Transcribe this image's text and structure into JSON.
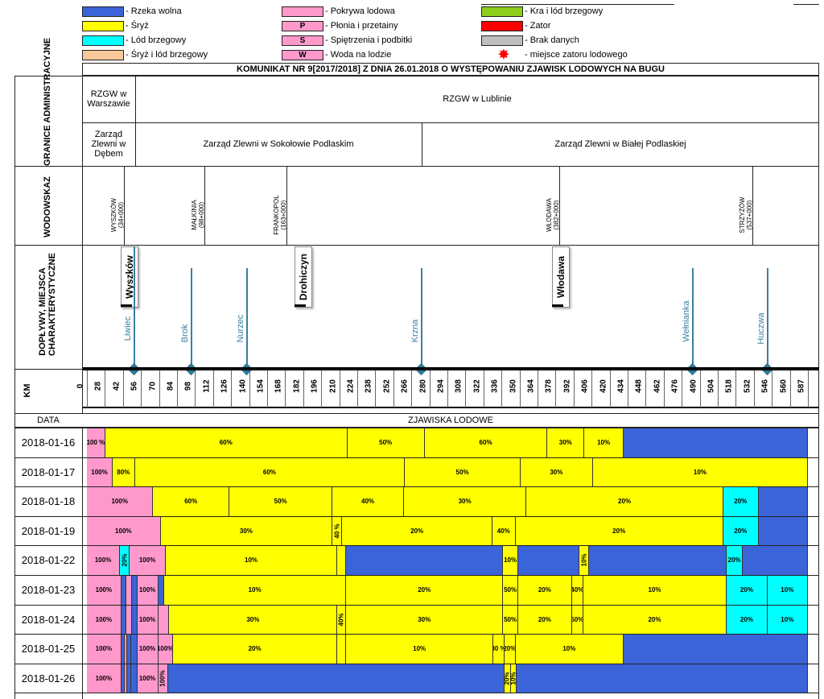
{
  "legend": [
    {
      "color": "#3b64d8",
      "mark": "",
      "label": "- Rzeka wolna"
    },
    {
      "color": "#ffff00",
      "mark": "",
      "label": "- Śryż"
    },
    {
      "color": "#00ffff",
      "mark": "",
      "label": "- Lód brzegowy"
    },
    {
      "color": "#f8c89a",
      "mark": "",
      "label": "- Śryż i lód brzegowy"
    },
    {
      "color": "#ff99cc",
      "mark": "",
      "label": "- Pokrywa lodowa"
    },
    {
      "color": "#ff99cc",
      "mark": "P",
      "label": "- Płonia i przetainy"
    },
    {
      "color": "#ff99cc",
      "mark": "S",
      "label": "- Spiętrzenia i podbitki"
    },
    {
      "color": "#ff99cc",
      "mark": "W",
      "label": "- Woda na lodzie"
    },
    {
      "color": "#8ecf1e",
      "mark": "",
      "label": "- Kra i lód brzegowy"
    },
    {
      "color": "#ff0000",
      "mark": "",
      "label": "- Zator"
    },
    {
      "color": "#bfbfbf",
      "mark": "",
      "label": "- Brak danych"
    },
    {
      "color": "star",
      "mark": "",
      "label": "- miejsce zatoru lodowego"
    }
  ],
  "title": "KOMUNIKAT NR 9[2017/2018] Z DNIA 26.01.2018 O WYSTĘPOWANIU ZJAWISK LODOWYCH NA BUGU",
  "rows": {
    "granice": "GRANICE ADMINISTRACYJNE",
    "wodowskaz": "WODOWSKAZ",
    "doplywy": "DOPŁYWY, MIEJSCA CHARAKTERYSTYCZNE",
    "km": "KM",
    "data": "DATA",
    "zjawiska": "ZJAWISKA LODOWE"
  },
  "admin": {
    "rzgw_warszawa": "RZGW w Warszawie",
    "rzgw_lublin": "RZGW w Lublinie",
    "zz_debe": "Zarząd Zlewni w Dębem",
    "zz_sokolow": "Zarząd Zlewni w Sokołowie Podlaskim",
    "zz_biala": "Zarząd Zlewni w Białej Podlaskiej"
  },
  "gauges": [
    {
      "name": "WYSZKÓW",
      "km_label": "(34+000)",
      "km": 34
    },
    {
      "name": "MAŁKINIA",
      "km_label": "(98+000)",
      "km": 98
    },
    {
      "name": "FRANKOPOL",
      "km_label": "(163+000)",
      "km": 163
    },
    {
      "name": "WŁODAWA",
      "km_label": "(382+000)",
      "km": 382
    },
    {
      "name": "STRZYŻÓW",
      "km_label": "(537+000)",
      "km": 537
    }
  ],
  "places": [
    {
      "name": "Wyszków",
      "km": 34
    },
    {
      "name": "Drohiczyn",
      "km": 166
    },
    {
      "name": "Włodawa",
      "km": 372
    }
  ],
  "tributaries": [
    {
      "name": "Liwiec",
      "km": 41
    },
    {
      "name": "Brok",
      "km": 84
    },
    {
      "name": "Nurzec",
      "km": 127
    },
    {
      "name": "Krzna",
      "km": 262
    },
    {
      "name": "Wełnianka",
      "km": 472
    },
    {
      "name": "Huczwa",
      "km": 529
    }
  ],
  "chart_data": {
    "type": "table",
    "title": "KOMUNIKAT NR 9[2017/2018] Z DNIA 26.01.2018 O WYSTĘPOWANIU ZJAWISK LODOWYCH NA BUGU",
    "km_ticks": [
      0,
      28,
      42,
      56,
      70,
      84,
      98,
      112,
      126,
      140,
      154,
      168,
      182,
      196,
      210,
      224,
      238,
      252,
      266,
      280,
      294,
      308,
      322,
      336,
      350,
      364,
      378,
      392,
      406,
      420,
      434,
      448,
      462,
      476,
      490,
      504,
      518,
      532,
      546,
      560,
      587
    ],
    "km_range": [
      0,
      587
    ],
    "days": [
      {
        "date": "2018-01-16",
        "segments": [
          {
            "from": 0,
            "to": 15,
            "phenomenon": "Pokrywa lodowa",
            "label": "100 %"
          },
          {
            "from": 15,
            "to": 212,
            "phenomenon": "Śryż",
            "label": "60%"
          },
          {
            "from": 212,
            "to": 275,
            "phenomenon": "Śryż",
            "label": "50%"
          },
          {
            "from": 275,
            "to": 375,
            "phenomenon": "Śryż",
            "label": "60%"
          },
          {
            "from": 375,
            "to": 405,
            "phenomenon": "Śryż",
            "label": "30%"
          },
          {
            "from": 405,
            "to": 437,
            "phenomenon": "Śryż",
            "label": "10%"
          },
          {
            "from": 437,
            "to": 587,
            "phenomenon": "Rzeka wolna",
            "label": ""
          }
        ]
      },
      {
        "date": "2018-01-17",
        "segments": [
          {
            "from": 0,
            "to": 21,
            "phenomenon": "Pokrywa lodowa",
            "label": "100%"
          },
          {
            "from": 21,
            "to": 39,
            "phenomenon": "Śryż",
            "label": "80%"
          },
          {
            "from": 39,
            "to": 259,
            "phenomenon": "Śryż",
            "label": "60%"
          },
          {
            "from": 259,
            "to": 353,
            "phenomenon": "Śryż",
            "label": "50%"
          },
          {
            "from": 353,
            "to": 412,
            "phenomenon": "Śryż",
            "label": "30%"
          },
          {
            "from": 412,
            "to": 587,
            "phenomenon": "Śryż",
            "label": "10%"
          }
        ]
      },
      {
        "date": "2018-01-18",
        "segments": [
          {
            "from": 0,
            "to": 54,
            "phenomenon": "Pokrywa lodowa",
            "label": "100%"
          },
          {
            "from": 54,
            "to": 116,
            "phenomenon": "Śryż",
            "label": "60%"
          },
          {
            "from": 116,
            "to": 200,
            "phenomenon": "Śryż",
            "label": "50%"
          },
          {
            "from": 200,
            "to": 258,
            "phenomenon": "Śryż",
            "label": "40%"
          },
          {
            "from": 258,
            "to": 358,
            "phenomenon": "Śryż",
            "label": "30%"
          },
          {
            "from": 358,
            "to": 518,
            "phenomenon": "Śryż",
            "label": "20%"
          },
          {
            "from": 518,
            "to": 547,
            "phenomenon": "Lód brzegowy",
            "label": "20%"
          },
          {
            "from": 547,
            "to": 587,
            "phenomenon": "Rzeka wolna",
            "label": ""
          }
        ]
      },
      {
        "date": "2018-01-19",
        "segments": [
          {
            "from": 0,
            "to": 60,
            "phenomenon": "Pokrywa lodowa",
            "label": "100%"
          },
          {
            "from": 60,
            "to": 200,
            "phenomenon": "Śryż",
            "label": "30%"
          },
          {
            "from": 200,
            "to": 208,
            "phenomenon": "Śryż",
            "label": "40 %"
          },
          {
            "from": 208,
            "to": 330,
            "phenomenon": "Śryż",
            "label": "20%"
          },
          {
            "from": 330,
            "to": 349,
            "phenomenon": "Śryż",
            "label": "40%"
          },
          {
            "from": 349,
            "to": 518,
            "phenomenon": "Śryż",
            "label": "20%"
          },
          {
            "from": 518,
            "to": 547,
            "phenomenon": "Lód brzegowy",
            "label": "20%"
          },
          {
            "from": 547,
            "to": 587,
            "phenomenon": "Rzeka wolna",
            "label": ""
          }
        ]
      },
      {
        "date": "2018-01-22",
        "segments": [
          {
            "from": 0,
            "to": 27,
            "phenomenon": "Pokrywa lodowa",
            "label": "100%"
          },
          {
            "from": 27,
            "to": 35,
            "phenomenon": "Lód brzegowy",
            "label": "20%"
          },
          {
            "from": 35,
            "to": 64,
            "phenomenon": "Pokrywa lodowa",
            "label": "100%"
          },
          {
            "from": 64,
            "to": 204,
            "phenomenon": "Śryż",
            "label": "10%"
          },
          {
            "from": 204,
            "to": 211,
            "phenomenon": "Śryż",
            "label": ""
          },
          {
            "from": 211,
            "to": 339,
            "phenomenon": "Rzeka wolna",
            "label": ""
          },
          {
            "from": 339,
            "to": 351,
            "phenomenon": "Śryż",
            "label": "10%"
          },
          {
            "from": 351,
            "to": 401,
            "phenomenon": "Rzeka wolna",
            "label": ""
          },
          {
            "from": 401,
            "to": 409,
            "phenomenon": "Śryż",
            "label": "10%"
          },
          {
            "from": 409,
            "to": 521,
            "phenomenon": "Rzeka wolna",
            "label": ""
          },
          {
            "from": 521,
            "to": 534,
            "phenomenon": "Lód brzegowy",
            "label": "20%"
          },
          {
            "from": 534,
            "to": 587,
            "phenomenon": "Rzeka wolna",
            "label": ""
          }
        ]
      },
      {
        "date": "2018-01-23",
        "segments": [
          {
            "from": 0,
            "to": 28,
            "phenomenon": "Pokrywa lodowa",
            "label": "100%"
          },
          {
            "from": 28,
            "to": 32,
            "phenomenon": "Rzeka wolna",
            "label": ""
          },
          {
            "from": 32,
            "to": 37,
            "phenomenon": "Pokrywa lodowa",
            "label": ""
          },
          {
            "from": 37,
            "to": 41,
            "phenomenon": "Rzeka wolna",
            "label": ""
          },
          {
            "from": 41,
            "to": 58,
            "phenomenon": "Pokrywa lodowa",
            "label": "100%"
          },
          {
            "from": 58,
            "to": 63,
            "phenomenon": "Rzeka wolna",
            "label": ""
          },
          {
            "from": 63,
            "to": 211,
            "phenomenon": "Śryż",
            "label": "10%"
          },
          {
            "from": 211,
            "to": 339,
            "phenomenon": "Śryż",
            "label": "20%"
          },
          {
            "from": 339,
            "to": 351,
            "phenomenon": "Śryż",
            "label": "50%"
          },
          {
            "from": 351,
            "to": 395,
            "phenomenon": "Śryż",
            "label": "20%"
          },
          {
            "from": 395,
            "to": 404,
            "phenomenon": "Śryż",
            "label": "40%"
          },
          {
            "from": 404,
            "to": 521,
            "phenomenon": "Śryż",
            "label": "10%"
          },
          {
            "from": 521,
            "to": 554,
            "phenomenon": "Lód brzegowy",
            "label": "20%"
          },
          {
            "from": 554,
            "to": 587,
            "phenomenon": "Lód brzegowy",
            "label": "10%"
          }
        ]
      },
      {
        "date": "2018-01-24",
        "segments": [
          {
            "from": 0,
            "to": 28,
            "phenomenon": "Pokrywa lodowa",
            "label": "100%"
          },
          {
            "from": 28,
            "to": 32,
            "phenomenon": "Rzeka wolna",
            "label": ""
          },
          {
            "from": 32,
            "to": 37,
            "phenomenon": "Pokrywa lodowa",
            "label": ""
          },
          {
            "from": 37,
            "to": 41,
            "phenomenon": "Rzeka wolna",
            "label": ""
          },
          {
            "from": 41,
            "to": 58,
            "phenomenon": "Pokrywa lodowa",
            "label": "100%"
          },
          {
            "from": 58,
            "to": 67,
            "phenomenon": "Pokrywa lodowa",
            "label": ""
          },
          {
            "from": 67,
            "to": 204,
            "phenomenon": "Śryż",
            "label": "30%"
          },
          {
            "from": 204,
            "to": 211,
            "phenomenon": "Śryż",
            "label": "40%"
          },
          {
            "from": 211,
            "to": 339,
            "phenomenon": "Śryż",
            "label": "30%"
          },
          {
            "from": 339,
            "to": 351,
            "phenomenon": "Śryż",
            "label": "50%"
          },
          {
            "from": 351,
            "to": 395,
            "phenomenon": "Śryż",
            "label": "20%"
          },
          {
            "from": 395,
            "to": 404,
            "phenomenon": "Śryż",
            "label": "50%"
          },
          {
            "from": 404,
            "to": 521,
            "phenomenon": "Śryż",
            "label": "20%"
          },
          {
            "from": 521,
            "to": 554,
            "phenomenon": "Lód brzegowy",
            "label": "20%"
          },
          {
            "from": 554,
            "to": 587,
            "phenomenon": "Lód brzegowy",
            "label": "10%"
          }
        ]
      },
      {
        "date": "2018-01-25",
        "segments": [
          {
            "from": 0,
            "to": 28,
            "phenomenon": "Pokrywa lodowa",
            "label": "100%"
          },
          {
            "from": 28,
            "to": 31,
            "phenomenon": "Rzeka wolna",
            "label": ""
          },
          {
            "from": 31,
            "to": 33,
            "phenomenon": "Pokrywa lodowa",
            "label": ""
          },
          {
            "from": 33,
            "to": 36,
            "phenomenon": "Rzeka wolna",
            "label": ""
          },
          {
            "from": 36,
            "to": 41,
            "phenomenon": "Rzeka wolna",
            "label": ""
          },
          {
            "from": 41,
            "to": 58,
            "phenomenon": "Pokrywa lodowa",
            "label": "100%"
          },
          {
            "from": 58,
            "to": 70,
            "phenomenon": "Pokrywa lodowa",
            "label": "100%"
          },
          {
            "from": 70,
            "to": 204,
            "phenomenon": "Śryż",
            "label": "20%"
          },
          {
            "from": 204,
            "to": 211,
            "phenomenon": "Śryż",
            "label": ""
          },
          {
            "from": 211,
            "to": 331,
            "phenomenon": "Śryż",
            "label": "10%"
          },
          {
            "from": 331,
            "to": 340,
            "phenomenon": "Śryż",
            "label": "30 %"
          },
          {
            "from": 340,
            "to": 349,
            "phenomenon": "Śryż",
            "label": "20%"
          },
          {
            "from": 349,
            "to": 437,
            "phenomenon": "Śryż",
            "label": "10%"
          },
          {
            "from": 437,
            "to": 587,
            "phenomenon": "Rzeka wolna",
            "label": ""
          }
        ]
      },
      {
        "date": "2018-01-26",
        "segments": [
          {
            "from": 0,
            "to": 28,
            "phenomenon": "Pokrywa lodowa",
            "label": "100%"
          },
          {
            "from": 28,
            "to": 31,
            "phenomenon": "Rzeka wolna",
            "label": ""
          },
          {
            "from": 31,
            "to": 33,
            "phenomenon": "Pokrywa lodowa",
            "label": ""
          },
          {
            "from": 33,
            "to": 36,
            "phenomenon": "Rzeka wolna",
            "label": ""
          },
          {
            "from": 36,
            "to": 41,
            "phenomenon": "Rzeka wolna",
            "label": ""
          },
          {
            "from": 41,
            "to": 58,
            "phenomenon": "Pokrywa lodowa",
            "label": "100%"
          },
          {
            "from": 58,
            "to": 66,
            "phenomenon": "Pokrywa lodowa",
            "label": "100%"
          },
          {
            "from": 66,
            "to": 340,
            "phenomenon": "Rzeka wolna",
            "label": ""
          },
          {
            "from": 340,
            "to": 345,
            "phenomenon": "Śryż",
            "label": "20%"
          },
          {
            "from": 345,
            "to": 350,
            "phenomenon": "Śryż",
            "label": "10%"
          },
          {
            "from": 350,
            "to": 587,
            "phenomenon": "Rzeka wolna",
            "label": ""
          }
        ]
      }
    ]
  },
  "colors": {
    "Rzeka wolna": "#3b64d8",
    "Śryż": "#ffff00",
    "Lód brzegowy": "#00ffff",
    "Śryż i lód brzegowy": "#f8c89a",
    "Pokrywa lodowa": "#ff99cc",
    "Kra i lód brzegowy": "#8ecf1e",
    "Zator": "#ff0000",
    "Brak danych": "#bfbfbf",
    "river_line": "#3a7fa3",
    "diamond": "#2e7b96"
  }
}
